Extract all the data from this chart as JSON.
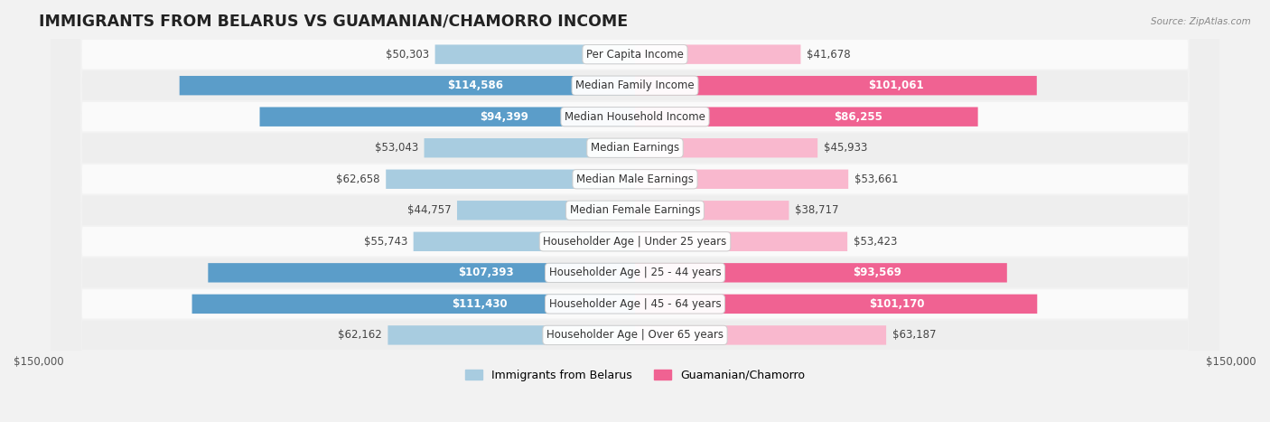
{
  "title": "IMMIGRANTS FROM BELARUS VS GUAMANIAN/CHAMORRO INCOME",
  "source": "Source: ZipAtlas.com",
  "categories": [
    "Per Capita Income",
    "Median Family Income",
    "Median Household Income",
    "Median Earnings",
    "Median Male Earnings",
    "Median Female Earnings",
    "Householder Age | Under 25 years",
    "Householder Age | 25 - 44 years",
    "Householder Age | 45 - 64 years",
    "Householder Age | Over 65 years"
  ],
  "belarus_values": [
    50303,
    114586,
    94399,
    53043,
    62658,
    44757,
    55743,
    107393,
    111430,
    62162
  ],
  "guamanian_values": [
    41678,
    101061,
    86255,
    45933,
    53661,
    38717,
    53423,
    93569,
    101170,
    63187
  ],
  "belarus_labels": [
    "$50,303",
    "$114,586",
    "$94,399",
    "$53,043",
    "$62,658",
    "$44,757",
    "$55,743",
    "$107,393",
    "$111,430",
    "$62,162"
  ],
  "guamanian_labels": [
    "$41,678",
    "$101,061",
    "$86,255",
    "$45,933",
    "$53,661",
    "$38,717",
    "$53,423",
    "$93,569",
    "$101,170",
    "$63,187"
  ],
  "belarus_color_light": "#a8cce0",
  "belarus_color_dark": "#5b9dc9",
  "guamanian_color_light": "#f9b8ce",
  "guamanian_color_dark": "#f06292",
  "max_value": 150000,
  "bar_height": 0.62,
  "background_color": "#f2f2f2",
  "row_bg_even": "#fafafa",
  "row_bg_odd": "#eeeeee",
  "label_fontsize": 8.5,
  "title_fontsize": 12.5,
  "legend_fontsize": 9,
  "axis_label_color": "#555555",
  "white_label_threshold_belarus": 80000,
  "white_label_threshold_guamanian": 75000
}
